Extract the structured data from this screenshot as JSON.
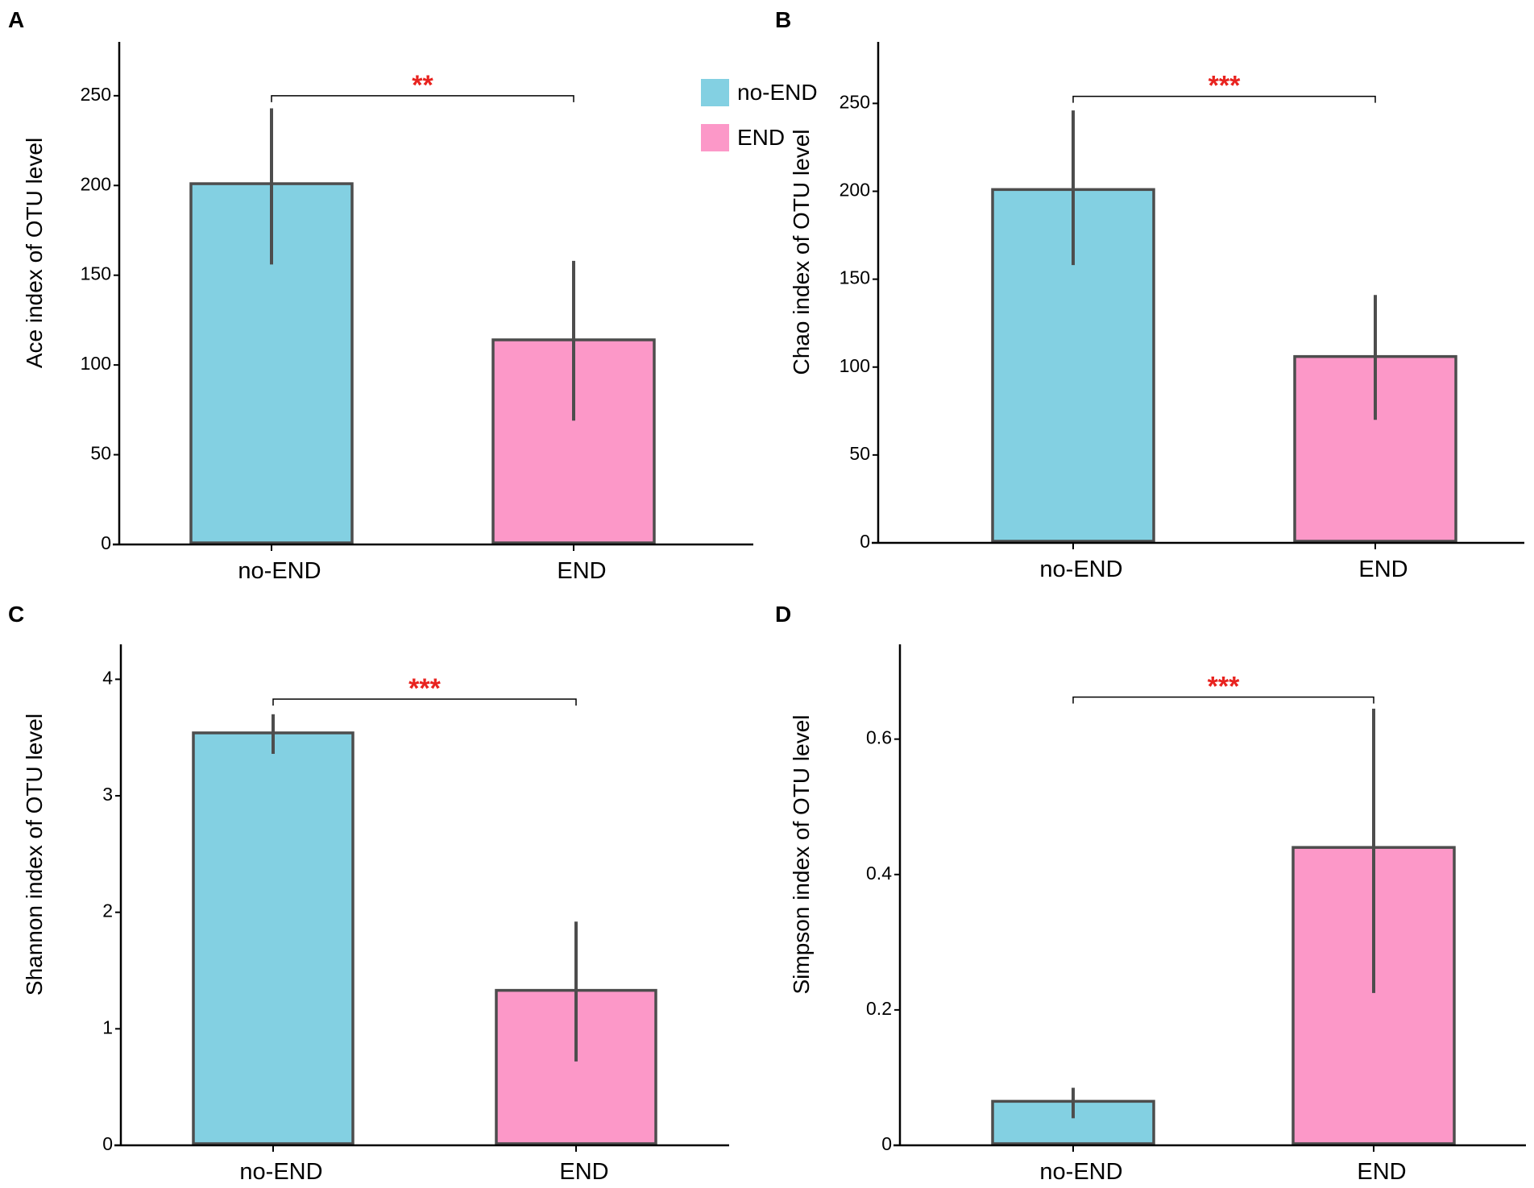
{
  "colors": {
    "no_end": "#83D0E2",
    "end": "#FC98C8",
    "edge": "#4D4D4D",
    "significance": "#E8231F"
  },
  "legend": {
    "items": [
      {
        "label": "no-END",
        "color": "#83D0E2"
      },
      {
        "label": "END",
        "color": "#FC98C8"
      }
    ]
  },
  "chart_data": [
    {
      "panel": "A",
      "type": "bar",
      "title": "",
      "ylabel": "Ace index of OTU level",
      "xlabel": "",
      "categories": [
        "no-END",
        "END"
      ],
      "values": [
        201,
        114
      ],
      "error_low": [
        156,
        69
      ],
      "error_high": [
        243,
        158
      ],
      "ylim": [
        0,
        280
      ],
      "yticks": [
        0,
        50,
        100,
        150,
        200,
        250
      ],
      "ytick_labels": [
        "0",
        "50",
        "100",
        "150",
        "200",
        "250"
      ],
      "significance": {
        "label": "**",
        "bracket_y": 250
      },
      "legend": true
    },
    {
      "panel": "B",
      "type": "bar",
      "title": "",
      "ylabel": "Chao index of OTU level",
      "xlabel": "",
      "categories": [
        "no-END",
        "END"
      ],
      "values": [
        201,
        106
      ],
      "error_low": [
        158,
        70
      ],
      "error_high": [
        246,
        141
      ],
      "ylim": [
        0,
        285
      ],
      "yticks": [
        0,
        50,
        100,
        150,
        200,
        250
      ],
      "ytick_labels": [
        "0",
        "50",
        "100",
        "150",
        "200",
        "250"
      ],
      "significance": {
        "label": "***",
        "bracket_y": 254
      },
      "legend": false
    },
    {
      "panel": "C",
      "type": "bar",
      "title": "",
      "ylabel": "Shannon index of OTU level",
      "xlabel": "",
      "categories": [
        "no-END",
        "END"
      ],
      "values": [
        3.54,
        1.33
      ],
      "error_low": [
        3.36,
        0.72
      ],
      "error_high": [
        3.7,
        1.92
      ],
      "ylim": [
        0,
        4.3
      ],
      "yticks": [
        0,
        1,
        2,
        3,
        4
      ],
      "ytick_labels": [
        "0",
        "1",
        "2",
        "3",
        "4"
      ],
      "significance": {
        "label": "***",
        "bracket_y": 3.83
      },
      "legend": false
    },
    {
      "panel": "D",
      "type": "bar",
      "title": "",
      "ylabel": "Simpson index of OTU level",
      "xlabel": "",
      "categories": [
        "no-END",
        "END"
      ],
      "values": [
        0.065,
        0.44
      ],
      "error_low": [
        0.04,
        0.225
      ],
      "error_high": [
        0.085,
        0.645
      ],
      "ylim": [
        0,
        0.74
      ],
      "yticks": [
        0,
        0.2,
        0.4,
        0.6
      ],
      "ytick_labels": [
        "0",
        "0.2",
        "0.4",
        "0.6"
      ],
      "significance": {
        "label": "***",
        "bracket_y": 0.662
      },
      "legend": false
    }
  ]
}
